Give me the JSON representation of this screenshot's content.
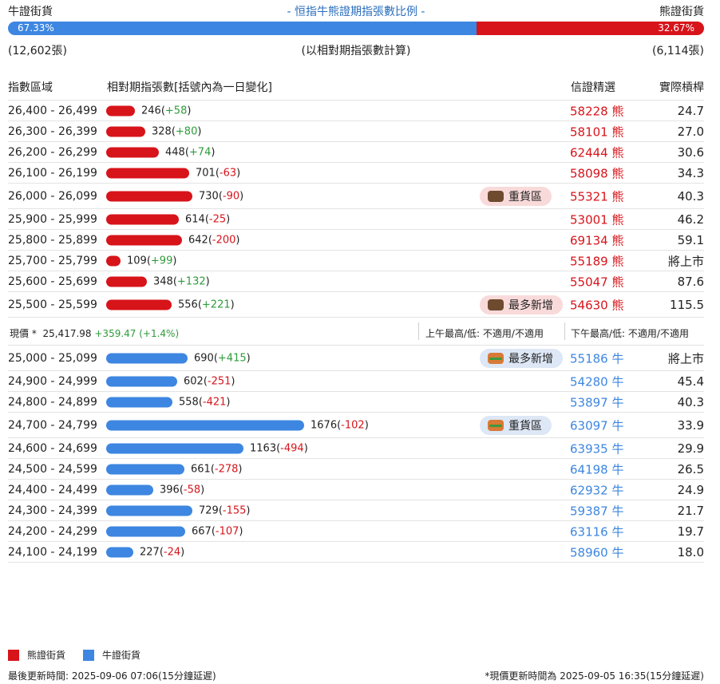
{
  "header": {
    "bull_title": "牛證街貨",
    "center_title": "- 恒指牛熊證期指張數比例 -",
    "bear_title": "熊證街貨",
    "bull_pct_label": "67.33%",
    "bear_pct_label": "32.67%",
    "bull_fraction": 0.6733,
    "bull_count": "(12,602張)",
    "basis_note": "(以相對期指張數計算)",
    "bear_count": "(6,114張)"
  },
  "columns": {
    "range": "指數區域",
    "contracts": "相對期指張數[括號內為一日變化]",
    "selected": "信證精選",
    "gearing": "實際槓桿"
  },
  "colors": {
    "bear": "#d7141a",
    "bull": "#3d86e1",
    "positive": "#2e9b3a"
  },
  "max_contracts": 1676,
  "bear_rows": [
    {
      "range": "26,400 - 26,499",
      "contracts": 246,
      "contracts_label": "246",
      "change": "+58",
      "code": "58228 熊",
      "gearing": "24.7"
    },
    {
      "range": "26,300 - 26,399",
      "contracts": 328,
      "contracts_label": "328",
      "change": "+80",
      "code": "58101 熊",
      "gearing": "27.0"
    },
    {
      "range": "26,200 - 26,299",
      "contracts": 448,
      "contracts_label": "448",
      "change": "+74",
      "code": "62444 熊",
      "gearing": "30.6"
    },
    {
      "range": "26,100 - 26,199",
      "contracts": 701,
      "contracts_label": "701",
      "change": "-63",
      "code": "58098 熊",
      "gearing": "34.3"
    },
    {
      "range": "26,000 - 26,099",
      "contracts": 730,
      "contracts_label": "730",
      "change": "-90",
      "code": "55321 熊",
      "gearing": "40.3",
      "tag": "重貨區",
      "tag_icon": "bear-icon"
    },
    {
      "range": "25,900 - 25,999",
      "contracts": 614,
      "contracts_label": "614",
      "change": "-25",
      "code": "53001 熊",
      "gearing": "46.2"
    },
    {
      "range": "25,800 - 25,899",
      "contracts": 642,
      "contracts_label": "642",
      "change": "-200",
      "code": "69134 熊",
      "gearing": "59.1"
    },
    {
      "range": "25,700 - 25,799",
      "contracts": 109,
      "contracts_label": "109",
      "change": "+99",
      "code": "55189 熊",
      "gearing": "將上市"
    },
    {
      "range": "25,600 - 25,699",
      "contracts": 348,
      "contracts_label": "348",
      "change": "+132",
      "code": "55047 熊",
      "gearing": "87.6"
    },
    {
      "range": "25,500 - 25,599",
      "contracts": 556,
      "contracts_label": "556",
      "change": "+221",
      "code": "54630 熊",
      "gearing": "115.5",
      "tag": "最多新增",
      "tag_icon": "bear-icon"
    }
  ],
  "spot": {
    "label": "現價 *",
    "value": "25,417.98",
    "change": "+359.47 (+1.4%)",
    "am": "上午最高/低: 不適用/不適用",
    "pm": "下午最高/低: 不適用/不適用"
  },
  "bull_rows": [
    {
      "range": "25,000 - 25,099",
      "contracts": 690,
      "contracts_label": "690",
      "change": "+415",
      "code": "55186 牛",
      "gearing": "將上市",
      "tag": "最多新增",
      "tag_icon": "bull-icon"
    },
    {
      "range": "24,900 - 24,999",
      "contracts": 602,
      "contracts_label": "602",
      "change": "-251",
      "code": "54280 牛",
      "gearing": "45.4"
    },
    {
      "range": "24,800 - 24,899",
      "contracts": 558,
      "contracts_label": "558",
      "change": "-421",
      "code": "53897 牛",
      "gearing": "40.3"
    },
    {
      "range": "24,700 - 24,799",
      "contracts": 1676,
      "contracts_label": "1676",
      "change": "-102",
      "code": "63097 牛",
      "gearing": "33.9",
      "tag": "重貨區",
      "tag_icon": "bull-icon"
    },
    {
      "range": "24,600 - 24,699",
      "contracts": 1163,
      "contracts_label": "1163",
      "change": "-494",
      "code": "63935 牛",
      "gearing": "29.9"
    },
    {
      "range": "24,500 - 24,599",
      "contracts": 661,
      "contracts_label": "661",
      "change": "-278",
      "code": "64198 牛",
      "gearing": "26.5"
    },
    {
      "range": "24,400 - 24,499",
      "contracts": 396,
      "contracts_label": "396",
      "change": "-58",
      "code": "62932 牛",
      "gearing": "24.9"
    },
    {
      "range": "24,300 - 24,399",
      "contracts": 729,
      "contracts_label": "729",
      "change": "-155",
      "code": "59387 牛",
      "gearing": "21.7"
    },
    {
      "range": "24,200 - 24,299",
      "contracts": 667,
      "contracts_label": "667",
      "change": "-107",
      "code": "63116 牛",
      "gearing": "19.7"
    },
    {
      "range": "24,100 - 24,199",
      "contracts": 227,
      "contracts_label": "227",
      "change": "-24",
      "code": "58960 牛",
      "gearing": "18.0"
    }
  ],
  "legend": {
    "bear": "熊證街貨",
    "bull": "牛證街貨"
  },
  "footer": {
    "updated": "最後更新時間: 2025-09-06 07:06(15分鐘延遲)",
    "spot_updated": "*現價更新時間為 2025-09-05 16:35(15分鐘延遲)"
  }
}
